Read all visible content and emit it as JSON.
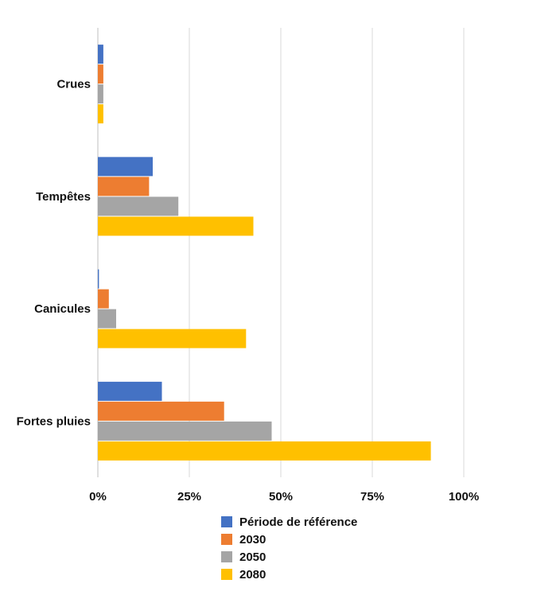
{
  "chart_data": {
    "type": "bar",
    "orientation": "horizontal",
    "categories": [
      "Crues",
      "Tempêtes",
      "Canicules",
      "Fortes pluies"
    ],
    "series": [
      {
        "name": "Période de référence",
        "color": "#4472C4",
        "values": [
          1.5,
          15,
          0.3,
          17.5
        ]
      },
      {
        "name": "2030",
        "color": "#ED7D31",
        "values": [
          1.5,
          14,
          3,
          34.5
        ]
      },
      {
        "name": "2050",
        "color": "#A5A5A5",
        "values": [
          1.5,
          22,
          5,
          47.5
        ]
      },
      {
        "name": "2080",
        "color": "#FFC000",
        "values": [
          1.5,
          42.5,
          40.5,
          91
        ]
      }
    ],
    "xlim": [
      0,
      100
    ],
    "xticks": [
      "0%",
      "25%",
      "50%",
      "75%",
      "100%"
    ],
    "grid": "vertical",
    "legend_position": "bottom",
    "title": "",
    "xlabel": "",
    "ylabel": ""
  }
}
